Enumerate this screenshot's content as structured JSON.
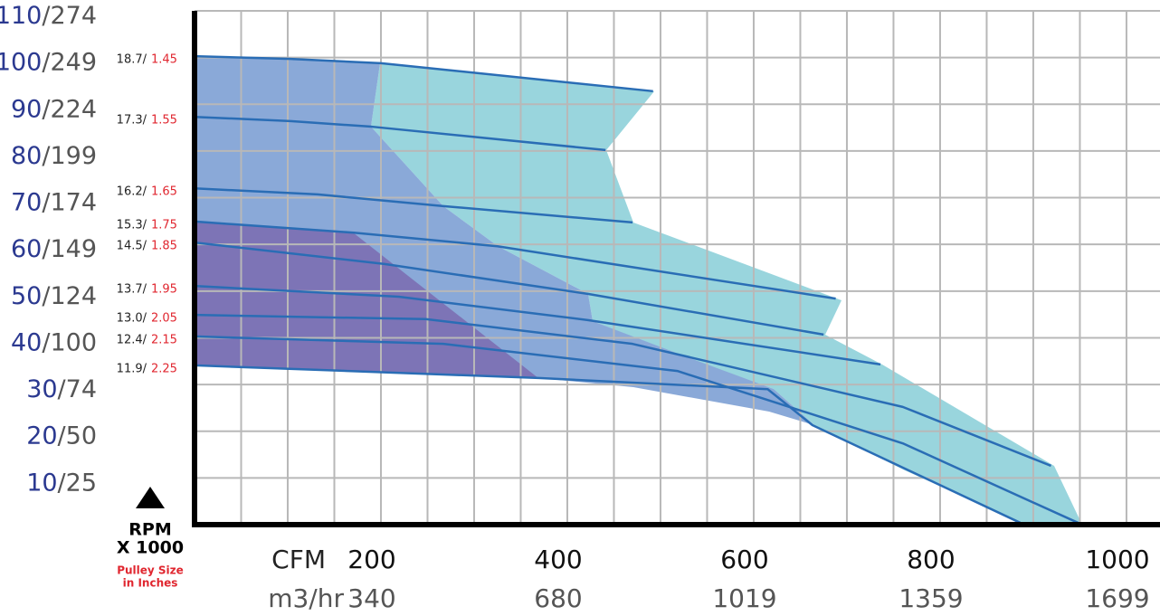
{
  "chart_data": {
    "type": "line",
    "y_axis_label": [
      "RPM",
      "X 1000"
    ],
    "pulley_label": [
      "Pulley Size",
      "in Inches"
    ],
    "xlabel": "CFM",
    "x2label": "m3/hr",
    "xlim": [
      0,
      1035
    ],
    "ylim": [
      0,
      110
    ],
    "xticks": [
      200,
      400,
      600,
      800,
      1000
    ],
    "x2ticks": [
      340,
      680,
      1019,
      1359,
      1699
    ],
    "xgrid": [
      50,
      100,
      150,
      200,
      250,
      300,
      350,
      400,
      450,
      500,
      550,
      600,
      650,
      700,
      750,
      800,
      850,
      900,
      950,
      1000
    ],
    "yticks": [
      {
        "value": 10,
        "label": "10/25"
      },
      {
        "value": 20,
        "label": "20/50"
      },
      {
        "value": 30,
        "label": "30/74"
      },
      {
        "value": 40,
        "label": "40/100"
      },
      {
        "value": 50,
        "label": "50/124"
      },
      {
        "value": 60,
        "label": "60/149"
      },
      {
        "value": 70,
        "label": "70/174"
      },
      {
        "value": 80,
        "label": "80/199"
      },
      {
        "value": 90,
        "label": "90/224"
      },
      {
        "value": 100,
        "label": "100/249"
      },
      {
        "value": 110,
        "label": "110/274"
      }
    ],
    "grid": true,
    "series": [
      {
        "name": "18.7/",
        "pulley": 1.45,
        "color": "#2a6db5",
        "x": [
          0,
          103,
          200,
          492
        ],
        "values": [
          100.3,
          99.7,
          98.8,
          92.8
        ]
      },
      {
        "name": "17.3/",
        "pulley": 1.55,
        "color": "#2a6db5",
        "x": [
          0,
          103,
          190,
          441
        ],
        "values": [
          87.3,
          86.4,
          85.2,
          80.2
        ]
      },
      {
        "name": "16.2/",
        "pulley": 1.65,
        "color": "#2a6db5",
        "x": [
          0,
          132,
          267,
          470
        ],
        "values": [
          72.0,
          70.7,
          68.2,
          64.7
        ]
      },
      {
        "name": "15.3/",
        "pulley": 1.75,
        "color": "#2a6db5",
        "x": [
          0,
          171,
          325,
          688
        ],
        "values": [
          64.9,
          62.5,
          59.6,
          48.4
        ]
      },
      {
        "name": "14.5/",
        "pulley": 1.85,
        "color": "#2a6db5",
        "x": [
          0,
          204,
          422,
          675
        ],
        "values": [
          60.4,
          55.8,
          49.4,
          40.7
        ]
      },
      {
        "name": "13.7/",
        "pulley": 1.95,
        "color": "#2a6db5",
        "x": [
          0,
          219,
          422,
          736
        ],
        "values": [
          51.1,
          48.8,
          43.8,
          34.3
        ]
      },
      {
        "name": "13.0/",
        "pulley": 2.05,
        "color": "#2a6db5",
        "x": [
          0,
          248,
          470,
          760,
          919
        ],
        "values": [
          44.9,
          44.0,
          38.7,
          25.2,
          12.6
        ]
      },
      {
        "name": "12.4/",
        "pulley": 2.15,
        "color": "#2a6db5",
        "x": [
          0,
          267,
          518,
          760,
          948
        ],
        "values": [
          40.3,
          38.7,
          32.9,
          17.4,
          0.4
        ]
      },
      {
        "name": "11.9/",
        "pulley": 2.25,
        "color": "#2a6db5",
        "x": [
          0,
          369,
          615,
          663,
          886
        ],
        "values": [
          34.1,
          31.4,
          29.0,
          21.3,
          0.4
        ]
      }
    ]
  }
}
